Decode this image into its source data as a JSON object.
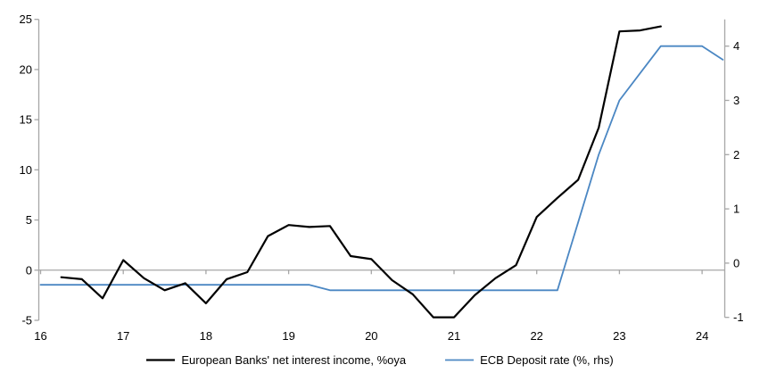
{
  "chart_data": {
    "type": "line",
    "title": "",
    "legend_position": "bottom",
    "grid": "zero-line-only",
    "x_axis": {
      "tick_labels": [
        "16",
        "17",
        "18",
        "19",
        "20",
        "21",
        "22",
        "23",
        "24"
      ],
      "tick_values": [
        16,
        17,
        18,
        19,
        20,
        21,
        22,
        23,
        24
      ],
      "unit": "year (quarterly data)"
    },
    "left_y_axis": {
      "tick_labels": [
        "25",
        "20",
        "15",
        "10",
        "5",
        "0",
        "-5"
      ],
      "tick_values": [
        25,
        20,
        15,
        10,
        5,
        0,
        -5
      ],
      "range": [
        -5,
        25
      ]
    },
    "right_y_axis": {
      "tick_labels": [
        "4",
        "3",
        "2",
        "1",
        "0",
        "-1"
      ],
      "tick_values": [
        4,
        3,
        2,
        1,
        0,
        -1
      ],
      "range": [
        -1,
        4.5
      ]
    },
    "series": [
      {
        "id": "european-banks-nii",
        "name": "European Banks' net interest income, %oya",
        "axis": "left",
        "color": "#000000",
        "stroke_width": 2.2,
        "x": [
          16.25,
          16.5,
          16.75,
          17,
          17.25,
          17.5,
          17.75,
          18,
          18.25,
          18.5,
          18.75,
          19,
          19.25,
          19.5,
          19.75,
          20,
          20.25,
          20.5,
          20.75,
          21,
          21.25,
          21.5,
          21.75,
          22,
          22.25,
          22.5,
          22.75,
          23,
          23.25,
          23.5
        ],
        "values": [
          -0.7,
          -0.9,
          -2.8,
          1,
          -0.8,
          -2,
          -1.3,
          -3.3,
          -0.9,
          -0.2,
          3.4,
          4.5,
          4.3,
          4.4,
          1.4,
          1.1,
          -1,
          -2.4,
          -4.7,
          -4.7,
          -2.5,
          -0.8,
          0.5,
          5.3,
          7.2,
          9,
          14.2,
          23.8,
          23.9,
          24.3
        ]
      },
      {
        "id": "ecb-deposit-rate",
        "name": "ECB Deposit rate (%, rhs)",
        "axis": "right",
        "color": "#4B87C3",
        "stroke_width": 1.8,
        "x": [
          16,
          16.25,
          16.5,
          16.75,
          17,
          17.25,
          17.5,
          17.75,
          18,
          18.25,
          18.5,
          18.75,
          19,
          19.25,
          19.5,
          19.75,
          20,
          20.25,
          20.5,
          20.75,
          21,
          21.25,
          21.5,
          21.75,
          22,
          22.25,
          22.5,
          22.75,
          23,
          23.25,
          23.5,
          23.75,
          24,
          24.25
        ],
        "values": [
          -0.4,
          -0.4,
          -0.4,
          -0.4,
          -0.4,
          -0.4,
          -0.4,
          -0.4,
          -0.4,
          -0.4,
          -0.4,
          -0.4,
          -0.4,
          -0.4,
          -0.5,
          -0.5,
          -0.5,
          -0.5,
          -0.5,
          -0.5,
          -0.5,
          -0.5,
          -0.5,
          -0.5,
          -0.5,
          -0.5,
          0.75,
          2,
          3,
          3.5,
          4,
          4,
          4,
          3.75
        ]
      }
    ]
  },
  "colors": {
    "axis_gray": "#A6A6A6",
    "text": "#000000",
    "background": "#FFFFFF"
  }
}
